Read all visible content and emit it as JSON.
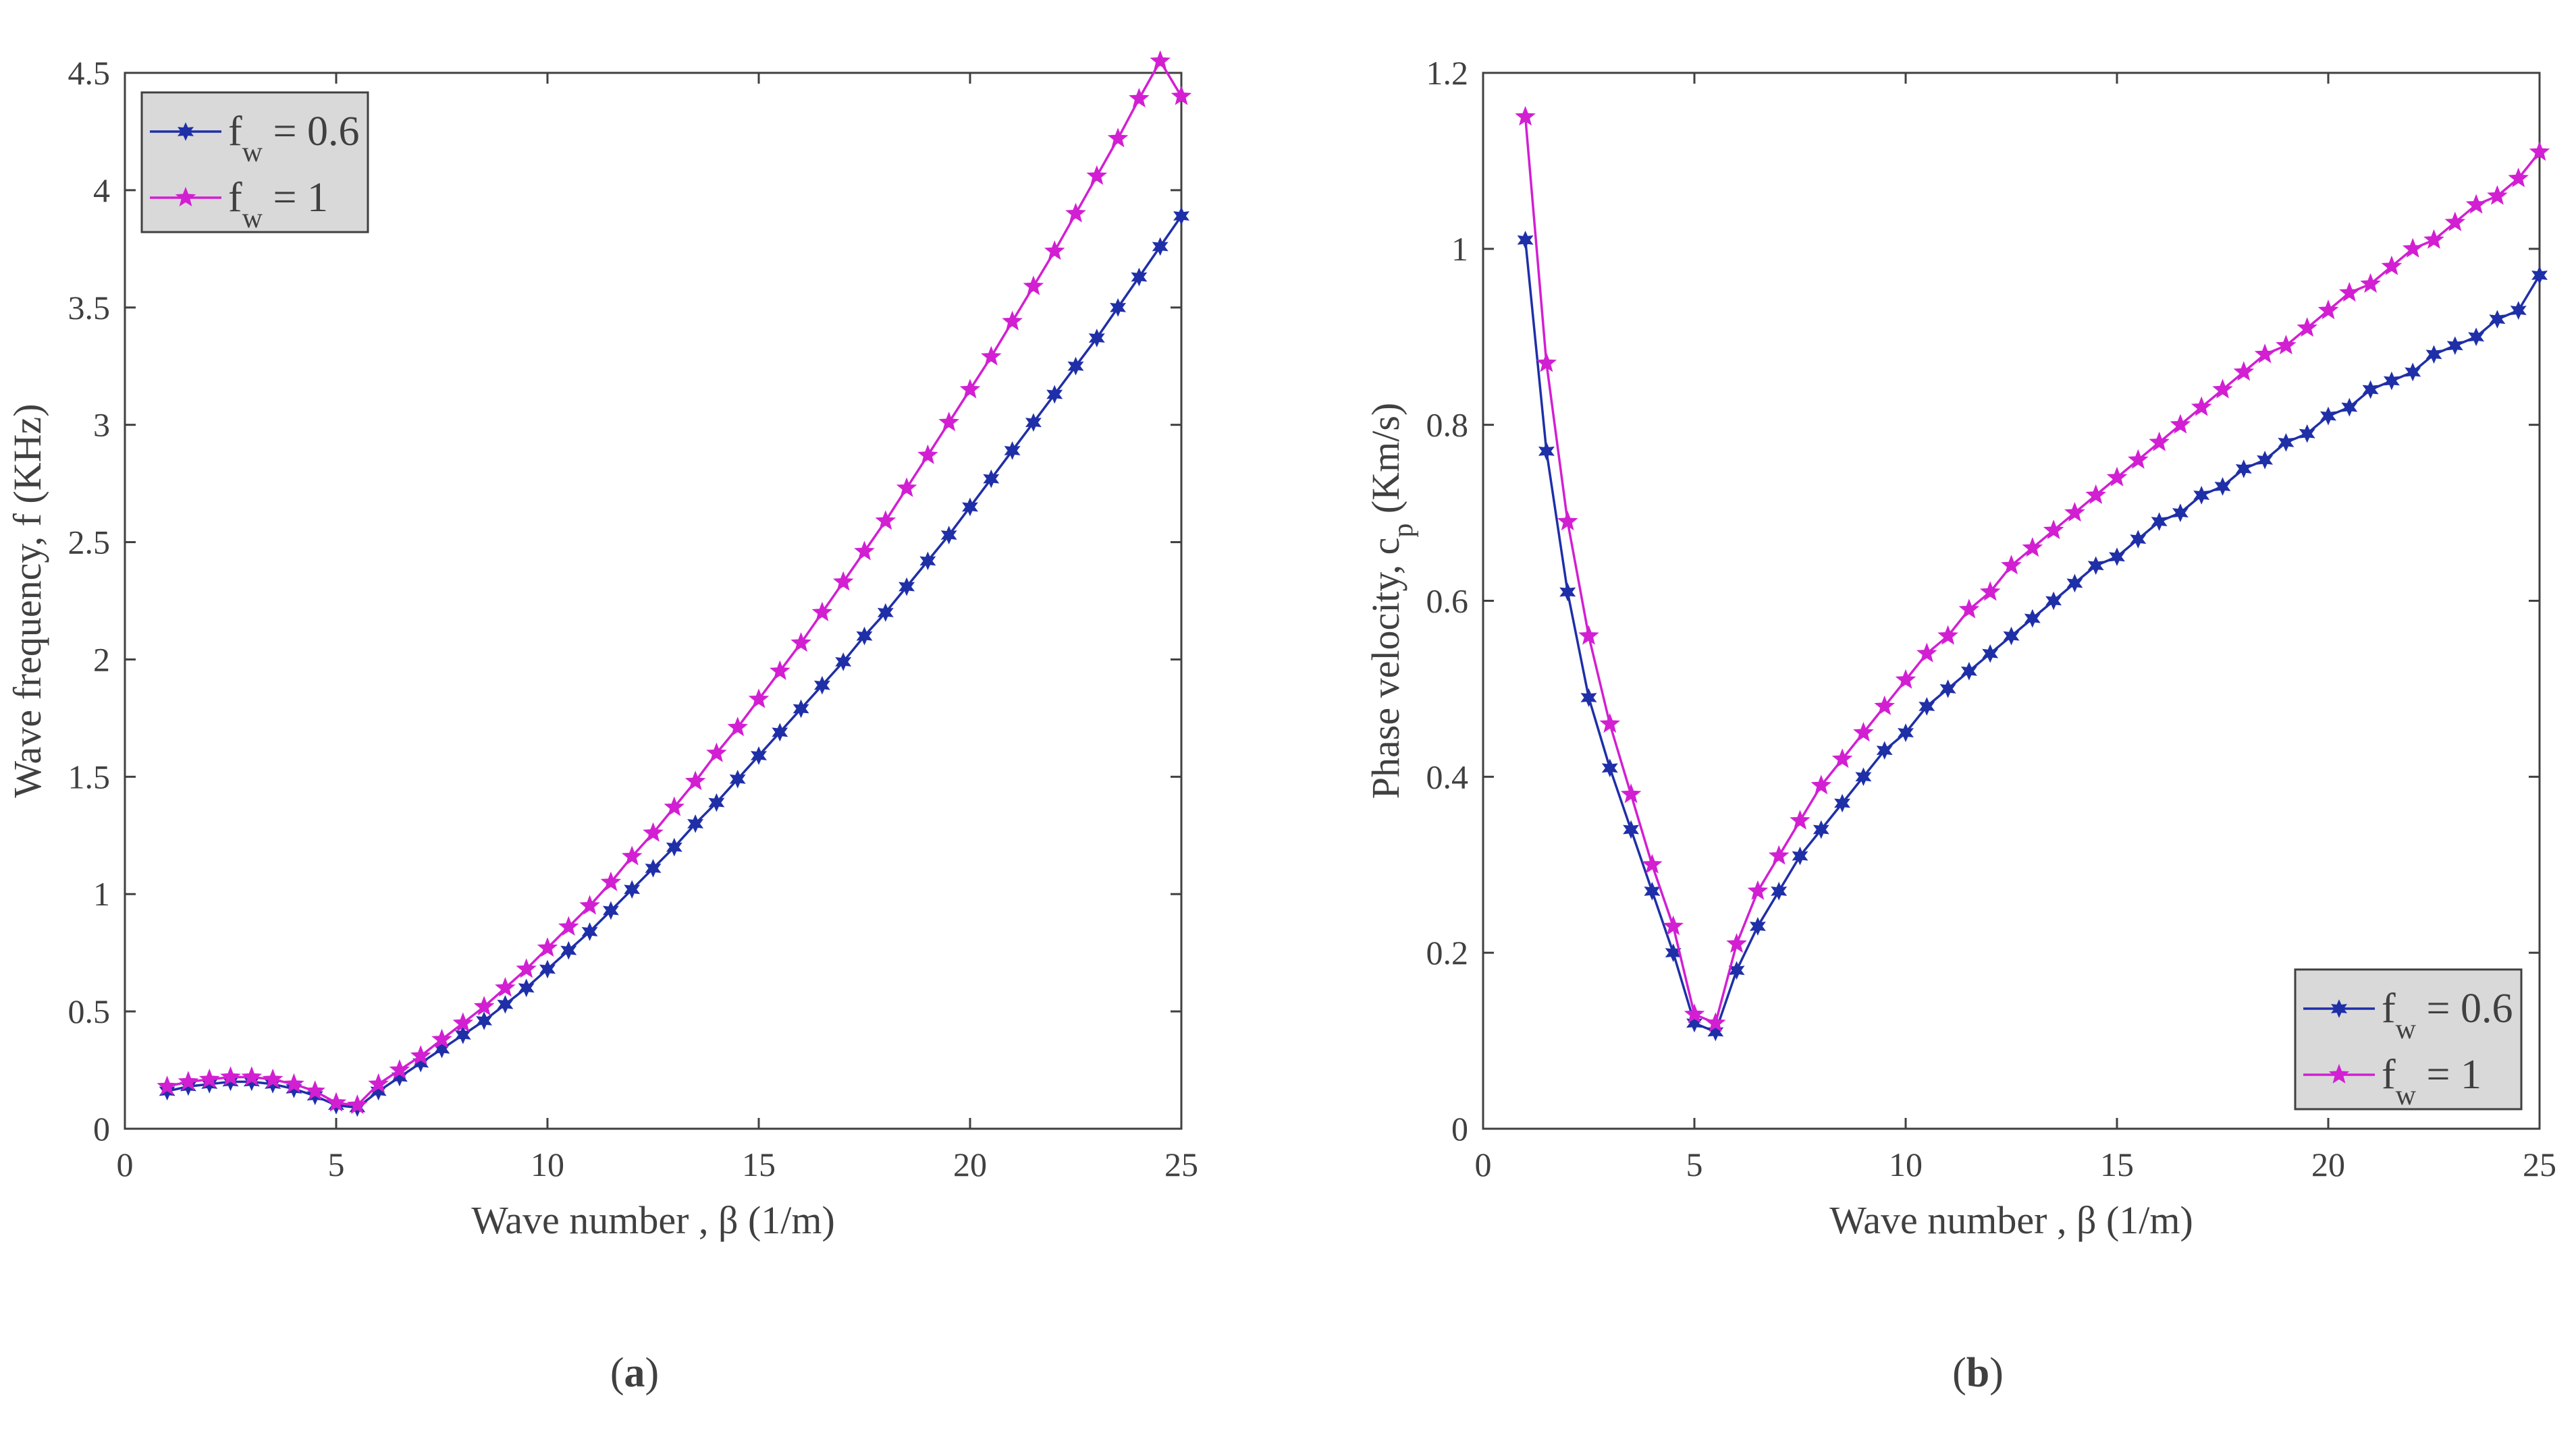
{
  "chart_data": [
    {
      "panel": "a",
      "type": "line",
      "caption_prefix": "(",
      "caption_letter": "a",
      "caption_suffix": ")",
      "xlabel": "Wave number , β (1/m)",
      "ylabel": "Wave frequency, f (KHz)",
      "xlim": [
        0,
        25
      ],
      "ylim": [
        0,
        4.5
      ],
      "xticks": [
        0,
        5,
        10,
        15,
        20,
        25
      ],
      "xtick_labels": [
        "0",
        "5",
        "10",
        "15",
        "20",
        "25"
      ],
      "yticks": [
        0,
        0.5,
        1,
        1.5,
        2,
        2.5,
        3,
        3.5,
        4,
        4.5
      ],
      "ytick_labels": [
        "0",
        "0.5",
        "1",
        "1.5",
        "2",
        "2.5",
        "3",
        "3.5",
        "4",
        "4.5"
      ],
      "legend_position": "top-left",
      "x": [
        1,
        1.5,
        2,
        2.5,
        3,
        3.5,
        4,
        4.5,
        5,
        5.5,
        6,
        6.5,
        7,
        7.5,
        8,
        8.5,
        9,
        9.5,
        10,
        10.5,
        11,
        11.5,
        12,
        12.5,
        13,
        13.5,
        14,
        14.5,
        15,
        15.5,
        16,
        16.5,
        17,
        17.5,
        18,
        18.5,
        19,
        19.5,
        20,
        20.5,
        21,
        21.5,
        22,
        22.5,
        23,
        23.5,
        24,
        24.5,
        25
      ],
      "series": [
        {
          "name": "f_w = 0.6",
          "legend_main": "f",
          "legend_sub": "w",
          "legend_value": " = 0.6",
          "color": "#1f2fa8",
          "marker": "hexagram",
          "values": [
            0.16,
            0.18,
            0.19,
            0.2,
            0.2,
            0.19,
            0.17,
            0.14,
            0.1,
            0.09,
            0.16,
            0.22,
            0.28,
            0.34,
            0.4,
            0.46,
            0.53,
            0.6,
            0.68,
            0.76,
            0.84,
            0.93,
            1.02,
            1.11,
            1.2,
            1.3,
            1.39,
            1.49,
            1.59,
            1.69,
            1.79,
            1.89,
            1.99,
            2.1,
            2.2,
            2.31,
            2.42,
            2.53,
            2.65,
            2.77,
            2.89,
            3.01,
            3.13,
            3.25,
            3.37,
            3.5,
            3.63,
            3.76,
            3.89
          ]
        },
        {
          "name": "f_w = 1",
          "legend_main": "f",
          "legend_sub": "w",
          "legend_value": " = 1",
          "color": "#d21fd2",
          "marker": "pentagram",
          "values": [
            0.18,
            0.2,
            0.21,
            0.22,
            0.22,
            0.21,
            0.19,
            0.16,
            0.11,
            0.1,
            0.19,
            0.25,
            0.31,
            0.38,
            0.45,
            0.52,
            0.6,
            0.68,
            0.77,
            0.86,
            0.95,
            1.05,
            1.16,
            1.26,
            1.37,
            1.48,
            1.6,
            1.71,
            1.83,
            1.95,
            2.07,
            2.2,
            2.33,
            2.46,
            2.59,
            2.73,
            2.87,
            3.01,
            3.15,
            3.29,
            3.44,
            3.59,
            3.74,
            3.9,
            4.06,
            4.22,
            4.39,
            4.55,
            4.4
          ]
        }
      ]
    },
    {
      "panel": "b",
      "type": "line",
      "caption_prefix": "(",
      "caption_letter": "b",
      "caption_suffix": ")",
      "xlabel": "Wave number ,  β (1/m)",
      "ylabel_main": "Phase velocity, c",
      "ylabel_sub": "p",
      "ylabel_end": " (Km/s)",
      "xlim": [
        0,
        25
      ],
      "ylim": [
        0,
        1.2
      ],
      "xticks": [
        0,
        5,
        10,
        15,
        20,
        25
      ],
      "xtick_labels": [
        "0",
        "5",
        "10",
        "15",
        "20",
        "25"
      ],
      "yticks": [
        0,
        0.2,
        0.4,
        0.6,
        0.8,
        1,
        1.2
      ],
      "ytick_labels": [
        "0",
        "0.2",
        "0.4",
        "0.6",
        "0.8",
        "1",
        "1.2"
      ],
      "legend_position": "bottom-right",
      "x": [
        1,
        1.5,
        2,
        2.5,
        3,
        3.5,
        4,
        4.5,
        5,
        5.5,
        6,
        6.5,
        7,
        7.5,
        8,
        8.5,
        9,
        9.5,
        10,
        10.5,
        11,
        11.5,
        12,
        12.5,
        13,
        13.5,
        14,
        14.5,
        15,
        15.5,
        16,
        16.5,
        17,
        17.5,
        18,
        18.5,
        19,
        19.5,
        20,
        20.5,
        21,
        21.5,
        22,
        22.5,
        23,
        23.5,
        24,
        24.5,
        25
      ],
      "series": [
        {
          "name": "f_w = 0.6",
          "legend_main": "f",
          "legend_sub": "w",
          "legend_value": " = 0.6",
          "color": "#1f2fa8",
          "marker": "hexagram",
          "values": [
            1.01,
            0.77,
            0.61,
            0.49,
            0.41,
            0.34,
            0.27,
            0.2,
            0.12,
            0.11,
            0.18,
            0.23,
            0.27,
            0.31,
            0.34,
            0.37,
            0.4,
            0.43,
            0.45,
            0.48,
            0.5,
            0.52,
            0.54,
            0.56,
            0.58,
            0.6,
            0.62,
            0.64,
            0.65,
            0.67,
            0.69,
            0.7,
            0.72,
            0.73,
            0.75,
            0.76,
            0.78,
            0.79,
            0.81,
            0.82,
            0.84,
            0.85,
            0.86,
            0.88,
            0.89,
            0.9,
            0.92,
            0.93,
            0.97
          ]
        },
        {
          "name": "f_w = 1",
          "legend_main": "f",
          "legend_sub": "w",
          "legend_value": " = 1",
          "color": "#d21fd2",
          "marker": "pentagram",
          "values": [
            1.15,
            0.87,
            0.69,
            0.56,
            0.46,
            0.38,
            0.3,
            0.23,
            0.13,
            0.12,
            0.21,
            0.27,
            0.31,
            0.35,
            0.39,
            0.42,
            0.45,
            0.48,
            0.51,
            0.54,
            0.56,
            0.59,
            0.61,
            0.64,
            0.66,
            0.68,
            0.7,
            0.72,
            0.74,
            0.76,
            0.78,
            0.8,
            0.82,
            0.84,
            0.86,
            0.88,
            0.89,
            0.91,
            0.93,
            0.95,
            0.96,
            0.98,
            1.0,
            1.01,
            1.03,
            1.05,
            1.06,
            1.08,
            1.11
          ]
        }
      ]
    }
  ]
}
